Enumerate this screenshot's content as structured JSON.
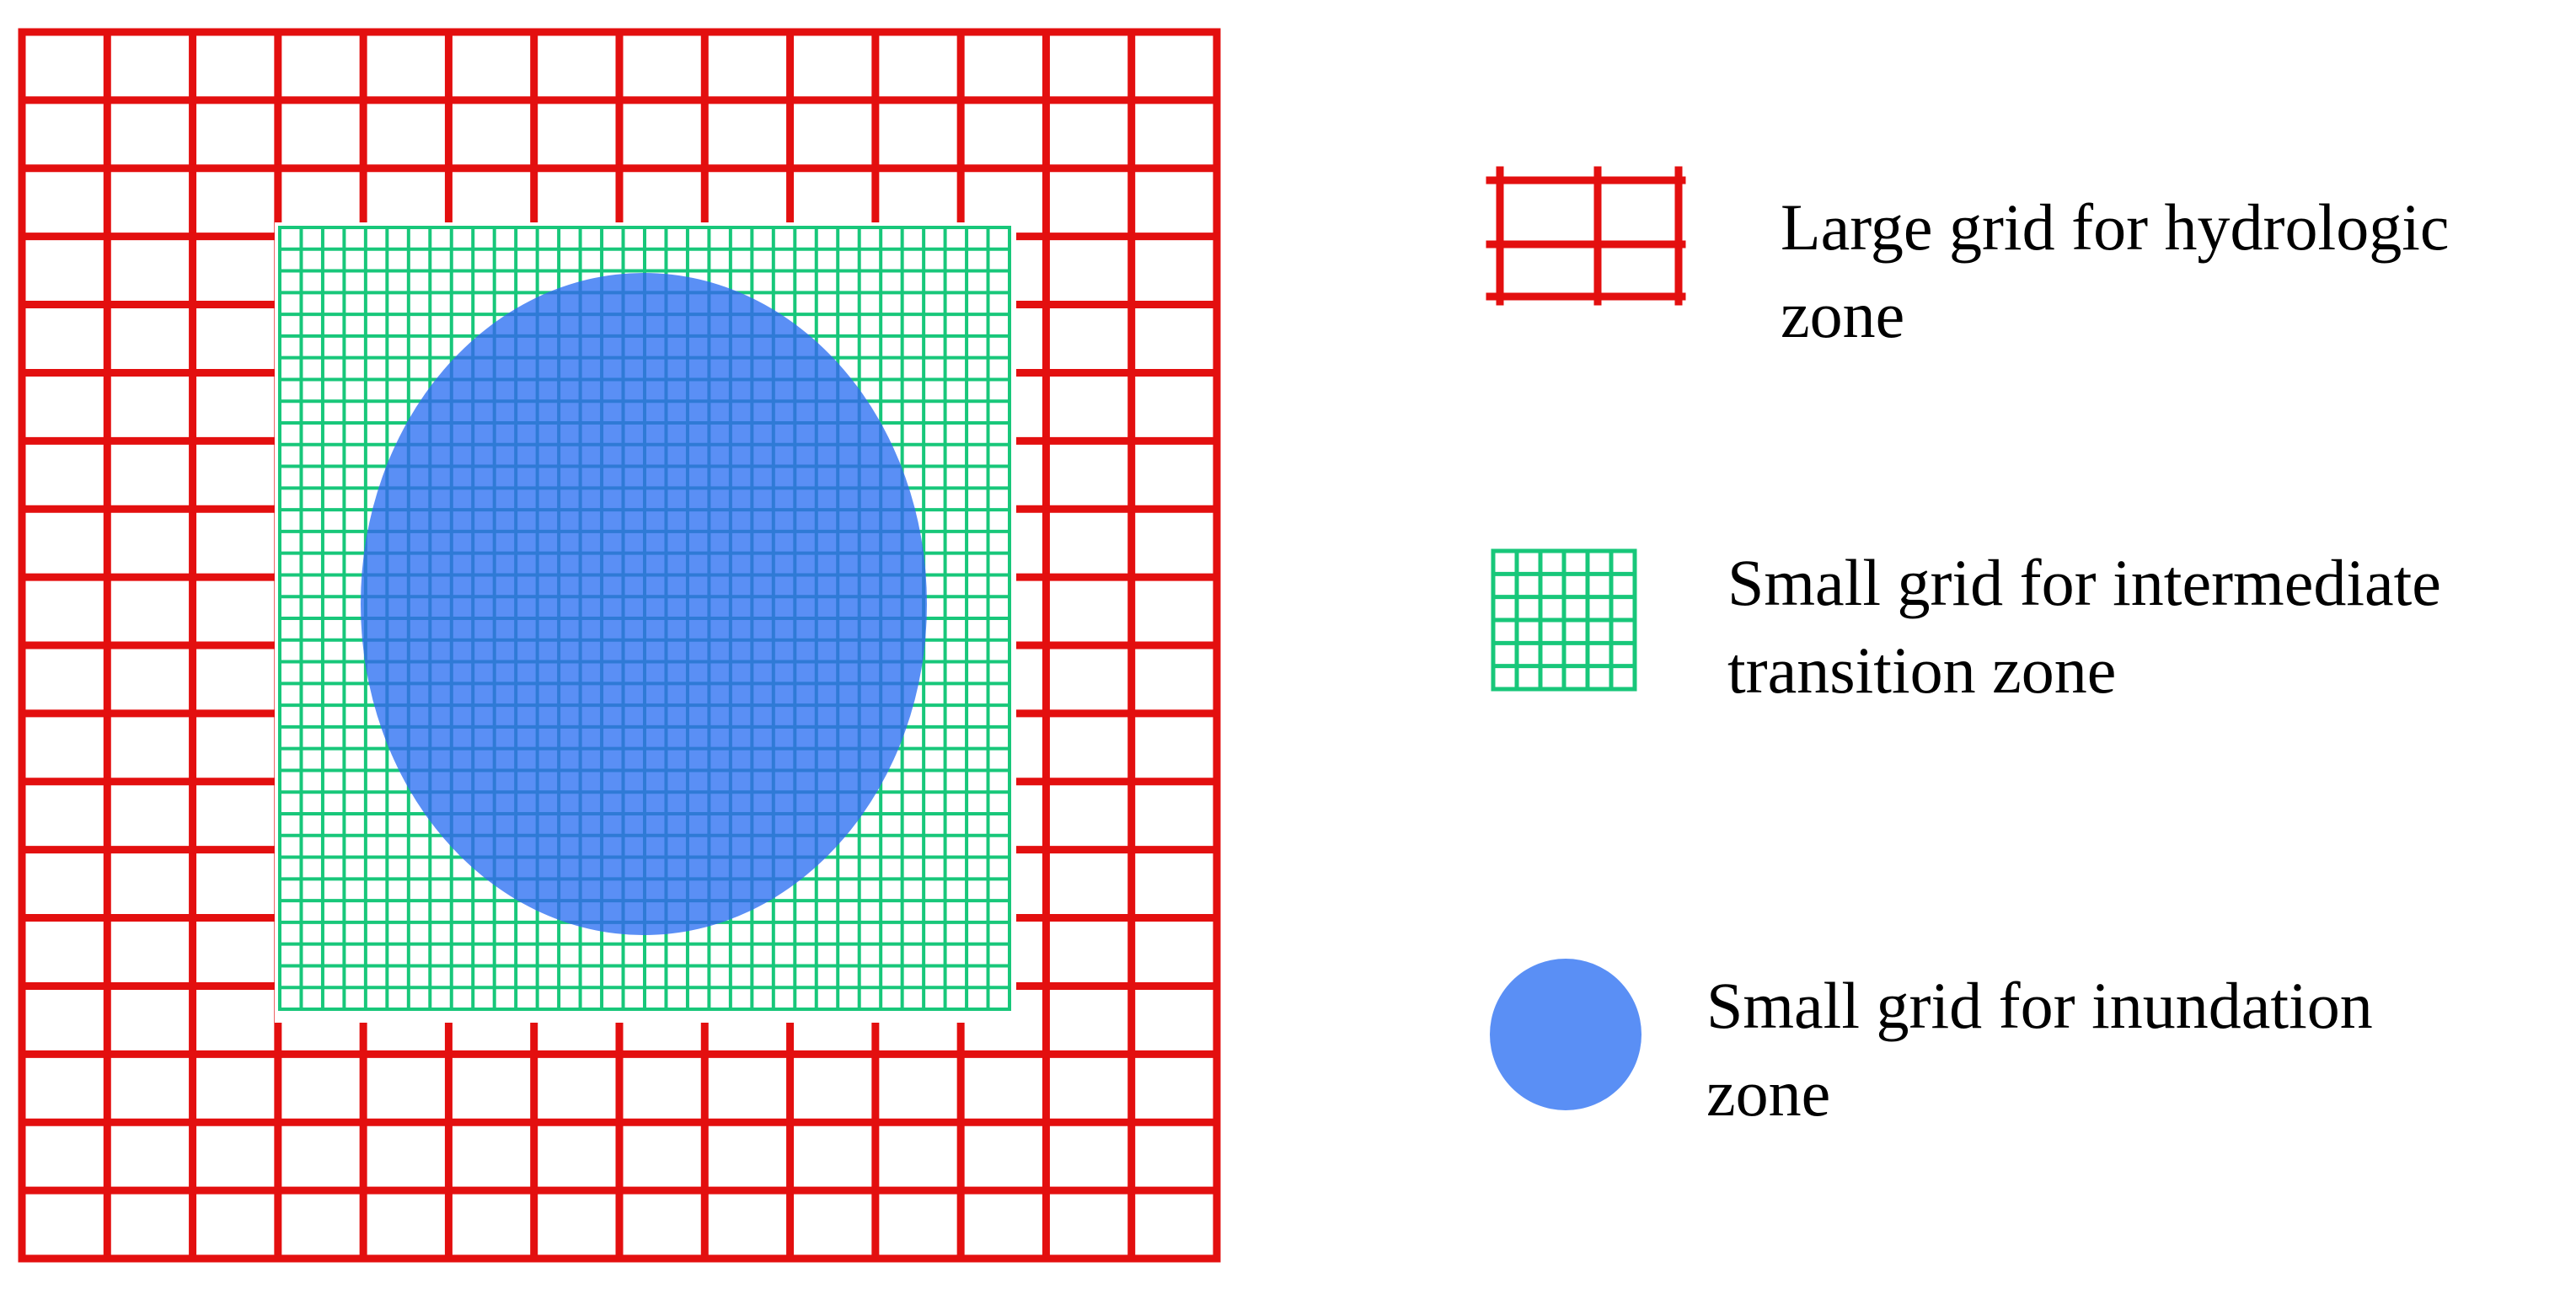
{
  "colors": {
    "hydrologic_grid": "#e30f0f",
    "transition_grid": "#18c77a",
    "inundation_zone": "#5a8ff5",
    "inundation_grid_lines": "#2f7ad6",
    "background": "#ffffff"
  },
  "legend": {
    "hydrologic": {
      "icon": "red-large-grid-icon",
      "line1": "Large grid for hydrologic",
      "line2": "zone"
    },
    "transition": {
      "icon": "green-small-grid-icon",
      "line1": "Small grid for intermediate",
      "line2": "transition zone"
    },
    "inundation": {
      "icon": "blue-circle-icon",
      "line1": "Small grid for inundation",
      "line2": "zone"
    }
  }
}
